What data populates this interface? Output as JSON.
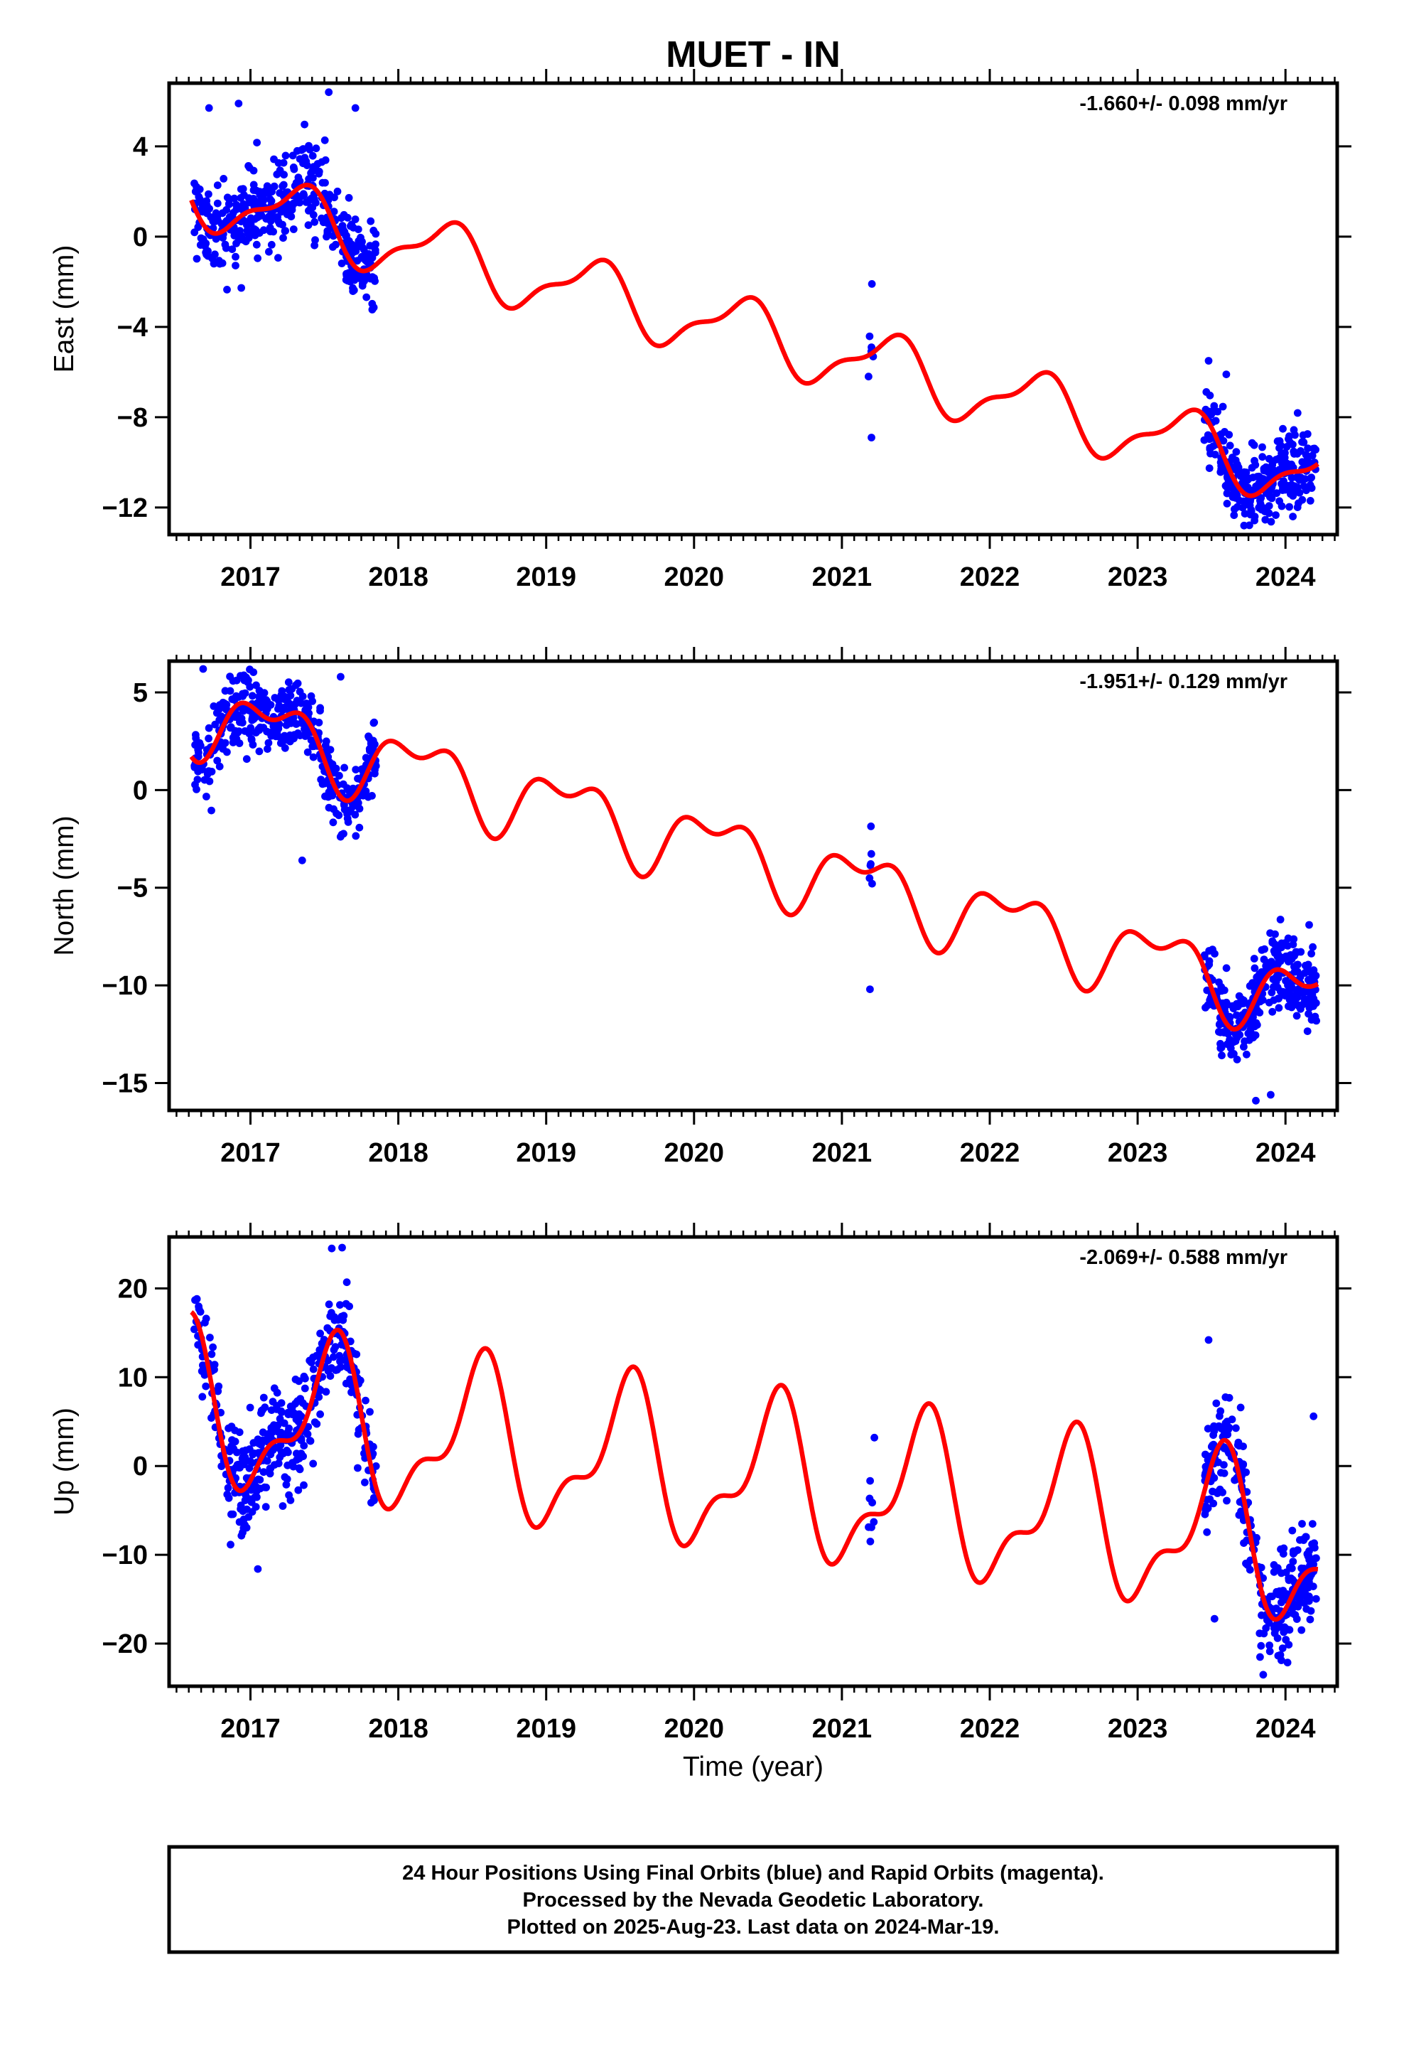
{
  "title": "MUET - IN",
  "xlabel": "Time (year)",
  "caption": [
    "24 Hour Positions Using Final Orbits (blue) and Rapid Orbits (magenta).",
    "Processed by the Nevada Geodetic Laboratory.",
    "Plotted on 2025-Aug-23. Last data on 2024-Mar-19."
  ],
  "colors": {
    "final_orbits": "#0000ff",
    "model": "#ff0000",
    "frame": "#000000"
  },
  "chart_data": [
    {
      "type": "scatter",
      "ylabel": "East (mm)",
      "rate": "-1.660+/- 0.098 mm/yr",
      "xlim": [
        2016.45,
        2024.35
      ],
      "ylim": [
        -13.2,
        6.8
      ],
      "xticks": [
        2017,
        2018,
        2019,
        2020,
        2021,
        2022,
        2023,
        2024
      ],
      "yticks": [
        -12,
        -8,
        -4,
        0,
        4
      ],
      "ytick_labels": [
        "−12",
        "−8",
        "−4",
        "0",
        "4"
      ],
      "grid": false,
      "model": {
        "name": "trend + seasonal fit",
        "x0": 2016.6,
        "offset": 2.0,
        "slope": -1.66,
        "annual": [
          1.2,
          -0.6
        ],
        "semiannual": [
          -0.3,
          0.4
        ]
      },
      "observations": {
        "segments": [
          {
            "start": 2016.62,
            "end": 2017.85,
            "n": 420,
            "noise": 0.95
          },
          {
            "start": 2021.18,
            "end": 2021.22,
            "n": 6,
            "noise": 1.2
          },
          {
            "start": 2023.45,
            "end": 2024.21,
            "n": 300,
            "noise": 0.8
          }
        ],
        "extremes": [
          [
            2016.92,
            5.9
          ],
          [
            2017.53,
            6.4
          ],
          [
            2017.71,
            5.7
          ],
          [
            2016.72,
            5.7
          ],
          [
            2021.2,
            -8.9
          ],
          [
            2021.2,
            -4.9
          ],
          [
            2023.48,
            -5.5
          ],
          [
            2023.6,
            -6.1
          ],
          [
            2023.72,
            -12.8
          ],
          [
            2024.05,
            -12.4
          ]
        ]
      }
    },
    {
      "type": "scatter",
      "ylabel": "North (mm)",
      "rate": "-1.951+/- 0.129 mm/yr",
      "xlim": [
        2016.45,
        2024.35
      ],
      "ylim": [
        -16.4,
        6.6
      ],
      "xticks": [
        2017,
        2018,
        2019,
        2020,
        2021,
        2022,
        2023,
        2024
      ],
      "yticks": [
        -15,
        -10,
        -5,
        0,
        5
      ],
      "ytick_labels": [
        "−15",
        "−10",
        "−5",
        "0",
        "5"
      ],
      "grid": false,
      "model": {
        "name": "trend + seasonal fit",
        "x0": 2016.6,
        "offset": 4.0,
        "slope": -1.95,
        "annual": [
          1.3,
          0.9
        ],
        "semiannual": [
          -0.9,
          0.2
        ]
      },
      "observations": {
        "segments": [
          {
            "start": 2016.62,
            "end": 2017.85,
            "n": 420,
            "noise": 0.9
          },
          {
            "start": 2021.18,
            "end": 2021.22,
            "n": 6,
            "noise": 1.1
          },
          {
            "start": 2023.45,
            "end": 2024.21,
            "n": 300,
            "noise": 1.0
          }
        ],
        "extremes": [
          [
            2016.68,
            6.2
          ],
          [
            2017.61,
            5.8
          ],
          [
            2017.35,
            -3.6
          ],
          [
            2021.19,
            -10.2
          ],
          [
            2023.8,
            -15.9
          ],
          [
            2023.9,
            -15.6
          ],
          [
            2024.16,
            -6.9
          ],
          [
            2024.08,
            -8.3
          ]
        ]
      }
    },
    {
      "type": "scatter",
      "ylabel": "Up (mm)",
      "rate": "-2.069+/- 0.588 mm/yr",
      "xlim": [
        2016.45,
        2024.35
      ],
      "ylim": [
        -24.8,
        25.8
      ],
      "xticks": [
        2017,
        2018,
        2019,
        2020,
        2021,
        2022,
        2023,
        2024
      ],
      "yticks": [
        -20,
        -10,
        0,
        10,
        20
      ],
      "ytick_labels": [
        "−20",
        "−10",
        "0",
        "10",
        "20"
      ],
      "grid": false,
      "model": {
        "name": "trend + seasonal fit",
        "x0": 2016.6,
        "offset": 6.5,
        "slope": -2.07,
        "annual": [
          -2.0,
          -7.6
        ],
        "semiannual": [
          3.6,
          0.3
        ]
      },
      "observations": {
        "segments": [
          {
            "start": 2016.62,
            "end": 2017.85,
            "n": 420,
            "noise": 2.8
          },
          {
            "start": 2021.18,
            "end": 2021.22,
            "n": 6,
            "noise": 3.0
          },
          {
            "start": 2023.45,
            "end": 2024.21,
            "n": 300,
            "noise": 2.8
          }
        ],
        "extremes": [
          [
            2016.62,
            15.4
          ],
          [
            2017.55,
            24.5
          ],
          [
            2017.62,
            24.6
          ],
          [
            2017.05,
            -11.6
          ],
          [
            2021.2,
            -6.9
          ],
          [
            2021.22,
            3.2
          ],
          [
            2023.48,
            14.2
          ],
          [
            2023.52,
            -17.2
          ],
          [
            2023.85,
            -23.5
          ],
          [
            2024.19,
            5.6
          ]
        ]
      }
    }
  ]
}
